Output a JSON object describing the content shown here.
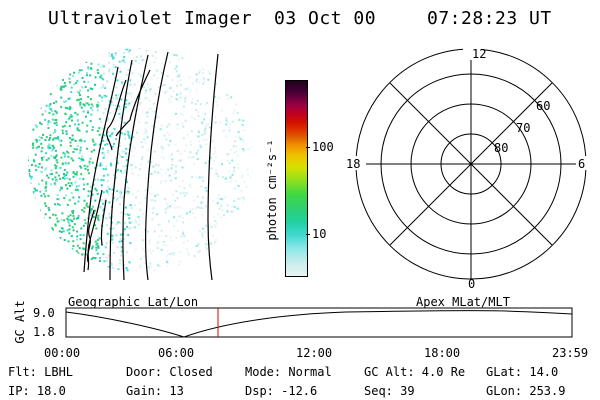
{
  "header": {
    "instrument": "Ultraviolet Imager",
    "date": "03 Oct 00",
    "time": "07:28:23 UT"
  },
  "colorbar": {
    "label": "photon cm⁻²s⁻¹",
    "ticks": [
      "100",
      "10"
    ],
    "scale": "log",
    "colors": [
      "#e8f4f4",
      "#c8ecec",
      "#8ee8e8",
      "#40d8d0",
      "#20d0a0",
      "#30d070",
      "#40d840",
      "#90e020",
      "#d8e000",
      "#f0c000",
      "#f09000",
      "#e06000",
      "#e03000",
      "#d01000",
      "#c00020",
      "#a00040",
      "#700040",
      "#400030",
      "#200020"
    ]
  },
  "polar_plot": {
    "mlt_labels": [
      "12",
      "18",
      "6",
      "0"
    ],
    "mlat_labels": [
      "60",
      "70",
      "80"
    ]
  },
  "coordinates": {
    "left": "Geographic Lat/Lon",
    "right": "Apex MLat/MLT"
  },
  "altitude_plot": {
    "ylabel": "GC Alt",
    "yticks": [
      "9.0",
      "1.8"
    ],
    "xticks": [
      "00:00",
      "06:00",
      "12:00",
      "18:00",
      "23:59"
    ],
    "marker_time": "07:28",
    "marker_color": "#e00000"
  },
  "info": {
    "flt": "Flt: LBHL",
    "ip": "IP: 18.0",
    "door": "Door: Closed",
    "gain": "Gain: 13",
    "mode": "Mode: Normal",
    "dsp": "Dsp:  -12.6",
    "gcalt": "GC Alt: 4.0 Re",
    "seq": "Seq: 39",
    "glat": "GLat:  14.0",
    "glon": "GLon: 253.9"
  }
}
